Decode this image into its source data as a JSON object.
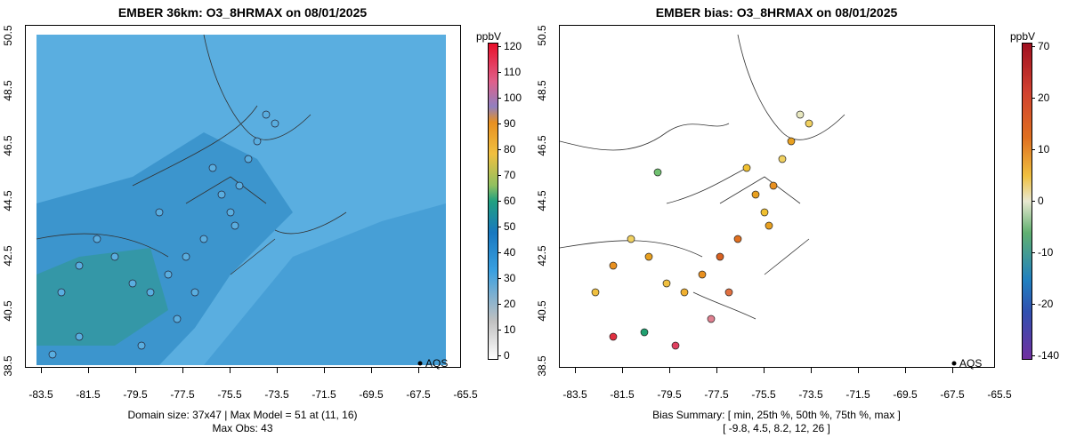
{
  "left_panel": {
    "title": "EMBER 36km: O3_8HRMAX on 08/01/2025",
    "footer_line1": "Domain size: 37x47 | Max Model = 51 at (11, 16)",
    "footer_line2": "Max Obs: 43",
    "colorbar_unit": "ppbV",
    "colorbar_labels": [
      "120",
      "110",
      "100",
      "90",
      "80",
      "70",
      "60",
      "50",
      "40",
      "30",
      "20",
      "10",
      "0"
    ],
    "legend_label": "AQS"
  },
  "right_panel": {
    "title": "EMBER bias: O3_8HRMAX on 08/01/2025",
    "footer_line1": "Bias Summary: [ min, 25th %, 50th %, 75th %, max ]",
    "footer_line2": "[ -9.8,   4.5,   8.2,   12,   26 ]",
    "colorbar_unit": "ppbV",
    "colorbar_labels": [
      "70",
      "20",
      "10",
      "0",
      "-10",
      "-20",
      "-140"
    ],
    "legend_label": "AQS"
  },
  "x_tick_labels": [
    "-83.5",
    "-81.5",
    "-79.5",
    "-77.5",
    "-75.5",
    "-73.5",
    "-71.5",
    "-69.5",
    "-67.5",
    "-65.5"
  ],
  "y_tick_labels": [
    "38.5",
    "40.5",
    "42.5",
    "44.5",
    "46.5",
    "48.5",
    "50.5"
  ],
  "colors": {
    "ocean_model": "#4fa3d8",
    "inland_model": "#2e8fcc",
    "obs_marker": "#5aaee0",
    "bias_marker": "#e0a020"
  }
}
